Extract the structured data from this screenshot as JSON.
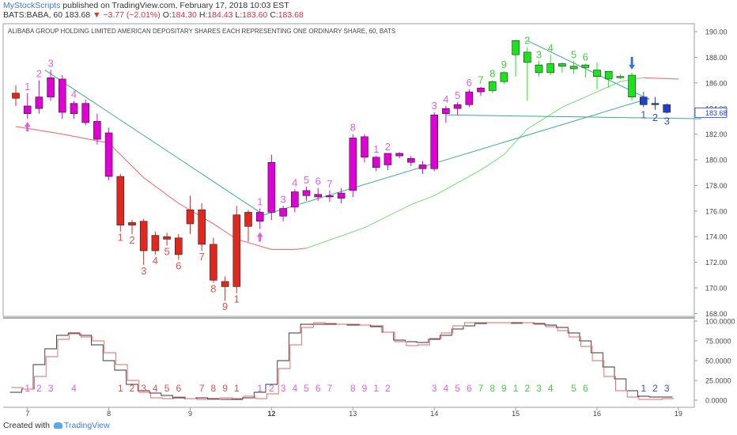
{
  "header": {
    "publisher": "MyStockScripts",
    "published_text": "published on TradingView.com, February 17, 2018 10:03 EST",
    "symbol": "BATS:BABA, 60",
    "last": "183.68",
    "change": "▼ −3.77 (−2.01%)",
    "ohlc_open_label": "O:",
    "ohlc_open": "184.30",
    "ohlc_high_label": "H:",
    "ohlc_high": "184.43",
    "ohlc_low_label": "L:",
    "ohlc_low": "183.60",
    "ohlc_close_label": "C:",
    "ohlc_close": "183.68"
  },
  "footer": {
    "created_with": "Created with",
    "brand": "TradingView"
  },
  "colors": {
    "bear": "#e0281e",
    "bull": "#e000d6",
    "green": "#19e619",
    "blue": "#1f3fcf",
    "count_pink": "#e060e0",
    "count_red": "#e05050",
    "count_green": "#40d040",
    "count_blue": "#3050d0",
    "red_ma": "#f07070",
    "green_ma": "#7ee07e",
    "trend": "#3aa99a",
    "osc_black": "#333333",
    "osc_red": "#e46666"
  },
  "chart_data": [
    {
      "type": "candlestick",
      "title": "ALIBABA GROUP HOLDING LIMITED AMERICAN DEPOSITARY SHARES EACH REPRESENTING ONE ORDINARY SHARE, 60, BATS",
      "x_ticks": [
        {
          "label": "7",
          "bar": 1
        },
        {
          "label": "8",
          "bar": 8
        },
        {
          "label": "9",
          "bar": 15
        },
        {
          "label": "12",
          "bar": 22
        },
        {
          "label": "13",
          "bar": 29
        },
        {
          "label": "14",
          "bar": 36
        },
        {
          "label": "15",
          "bar": 43
        },
        {
          "label": "16",
          "bar": 50
        },
        {
          "label": "19",
          "bar": 57
        }
      ],
      "ylim": [
        167.8,
        190.8
      ],
      "y_ticks": [
        "190.00",
        "188.00",
        "186.00",
        "184.00",
        "182.00",
        "180.00",
        "178.00",
        "176.00",
        "174.00",
        "172.00",
        "170.00",
        "168.00"
      ],
      "last_price_label": "183.68",
      "candles": [
        {
          "o": 185.2,
          "h": 185.8,
          "l": 184.2,
          "c": 184.8,
          "col": "bear"
        },
        {
          "o": 183.6,
          "h": 185.2,
          "l": 183.2,
          "c": 184.2,
          "col": "bull",
          "cnt": "1",
          "cc": "count_pink",
          "up_arrow": true
        },
        {
          "o": 184.0,
          "h": 186.2,
          "l": 183.6,
          "c": 184.9,
          "col": "bull",
          "cnt": "2",
          "cc": "count_pink"
        },
        {
          "o": 184.9,
          "h": 187.0,
          "l": 184.6,
          "c": 186.4,
          "col": "bull",
          "cnt": "3",
          "cc": "count_pink"
        },
        {
          "o": 186.3,
          "h": 186.6,
          "l": 183.2,
          "c": 183.7,
          "col": "bull"
        },
        {
          "o": 183.6,
          "h": 184.6,
          "l": 183.2,
          "c": 184.4,
          "col": "bull",
          "cnt": "4",
          "cc": "count_pink"
        },
        {
          "o": 184.4,
          "h": 184.7,
          "l": 182.7,
          "c": 182.9,
          "col": "bull"
        },
        {
          "o": 183.0,
          "h": 183.6,
          "l": 181.2,
          "c": 181.6,
          "col": "bull"
        },
        {
          "o": 182.1,
          "h": 182.5,
          "l": 178.4,
          "c": 178.7,
          "col": "bull"
        },
        {
          "o": 178.7,
          "h": 178.9,
          "l": 174.4,
          "c": 174.9,
          "col": "bear",
          "cnt": "1",
          "cc": "count_red"
        },
        {
          "o": 174.9,
          "h": 175.3,
          "l": 174.2,
          "c": 175.1,
          "col": "bear",
          "cnt": "2",
          "cc": "count_red"
        },
        {
          "o": 175.2,
          "h": 175.4,
          "l": 171.8,
          "c": 172.9,
          "col": "bear",
          "cnt": "3",
          "cc": "count_red"
        },
        {
          "o": 172.9,
          "h": 174.4,
          "l": 172.6,
          "c": 174.1,
          "col": "bear",
          "cnt": "4",
          "cc": "count_red"
        },
        {
          "o": 174.0,
          "h": 174.3,
          "l": 173.3,
          "c": 173.8,
          "col": "bear",
          "cnt": "5",
          "cc": "count_red"
        },
        {
          "o": 173.9,
          "h": 174.2,
          "l": 172.2,
          "c": 172.6,
          "col": "bear",
          "cnt": "6",
          "cc": "count_red"
        },
        {
          "o": 175.0,
          "h": 177.2,
          "l": 174.2,
          "c": 176.1,
          "col": "bear"
        },
        {
          "o": 176.1,
          "h": 176.6,
          "l": 172.9,
          "c": 173.4,
          "col": "bear",
          "cnt": "7",
          "cc": "count_red"
        },
        {
          "o": 173.4,
          "h": 173.9,
          "l": 170.4,
          "c": 170.6,
          "col": "bear",
          "cnt": "8",
          "cc": "count_red"
        },
        {
          "o": 170.5,
          "h": 170.9,
          "l": 169.0,
          "c": 170.1,
          "col": "bear",
          "cnt": "9",
          "cc": "count_red"
        },
        {
          "o": 170.1,
          "h": 176.4,
          "l": 169.6,
          "c": 175.7,
          "col": "bear",
          "cnt": "1",
          "cc": "count_red"
        },
        {
          "o": 174.8,
          "h": 176.1,
          "l": 173.6,
          "c": 175.9,
          "col": "bear"
        },
        {
          "o": 175.2,
          "h": 176.2,
          "l": 174.6,
          "c": 175.9,
          "col": "bull",
          "cnt": "1",
          "cc": "count_pink",
          "up_arrow": true
        },
        {
          "o": 175.9,
          "h": 180.4,
          "l": 175.3,
          "c": 179.8,
          "col": "bull"
        },
        {
          "o": 175.6,
          "h": 176.4,
          "l": 175.2,
          "c": 176.2,
          "col": "bull",
          "cnt": "3",
          "cc": "count_pink"
        },
        {
          "o": 176.3,
          "h": 177.7,
          "l": 175.9,
          "c": 177.5,
          "col": "bull",
          "cnt": "4",
          "cc": "count_pink"
        },
        {
          "o": 177.2,
          "h": 177.9,
          "l": 176.8,
          "c": 177.6,
          "col": "bull",
          "cnt": "5",
          "cc": "count_pink"
        },
        {
          "o": 177.3,
          "h": 177.8,
          "l": 176.8,
          "c": 177.1,
          "col": "bull",
          "cnt": "6",
          "cc": "count_pink"
        },
        {
          "o": 177.1,
          "h": 177.6,
          "l": 176.7,
          "c": 177.2,
          "col": "bull",
          "cnt": "7",
          "cc": "count_pink"
        },
        {
          "o": 177.0,
          "h": 177.8,
          "l": 176.6,
          "c": 177.4,
          "col": "bull"
        },
        {
          "o": 177.6,
          "h": 182.0,
          "l": 177.1,
          "c": 181.7,
          "col": "bull",
          "cnt": "8",
          "cc": "count_pink"
        },
        {
          "o": 180.2,
          "h": 182.0,
          "l": 179.8,
          "c": 181.8,
          "col": "bull"
        },
        {
          "o": 179.4,
          "h": 180.3,
          "l": 179.1,
          "c": 180.2,
          "col": "bull",
          "cnt": "1",
          "cc": "count_pink"
        },
        {
          "o": 179.6,
          "h": 180.5,
          "l": 179.2,
          "c": 180.5,
          "col": "bull",
          "cnt": "2",
          "cc": "count_pink"
        },
        {
          "o": 180.3,
          "h": 180.6,
          "l": 180.1,
          "c": 180.5,
          "col": "bull"
        },
        {
          "o": 179.8,
          "h": 180.3,
          "l": 179.5,
          "c": 180.1,
          "col": "bull"
        },
        {
          "o": 179.3,
          "h": 179.9,
          "l": 178.9,
          "c": 179.6,
          "col": "bull"
        },
        {
          "o": 179.3,
          "h": 183.7,
          "l": 179.1,
          "c": 183.5,
          "col": "bull",
          "cnt": "3",
          "cc": "count_pink"
        },
        {
          "o": 183.6,
          "h": 184.2,
          "l": 182.9,
          "c": 184.0,
          "col": "bull",
          "cnt": "4",
          "cc": "count_pink"
        },
        {
          "o": 184.0,
          "h": 184.5,
          "l": 183.5,
          "c": 184.3,
          "col": "bull",
          "cnt": "5",
          "cc": "count_pink"
        },
        {
          "o": 184.3,
          "h": 185.5,
          "l": 184.1,
          "c": 185.3,
          "col": "bull",
          "cnt": "6",
          "cc": "count_pink"
        },
        {
          "o": 185.3,
          "h": 185.7,
          "l": 185.0,
          "c": 185.6,
          "col": "bull",
          "cnt": "7",
          "cc": "count_green"
        },
        {
          "o": 185.4,
          "h": 186.2,
          "l": 185.2,
          "c": 186.1,
          "col": "green",
          "cnt": "8",
          "cc": "count_green"
        },
        {
          "o": 186.1,
          "h": 186.9,
          "l": 185.9,
          "c": 186.8,
          "col": "green",
          "cnt": "9",
          "cc": "count_green"
        },
        {
          "o": 188.2,
          "h": 189.4,
          "l": 186.5,
          "c": 189.3,
          "col": "green"
        },
        {
          "o": 187.6,
          "h": 188.8,
          "l": 184.6,
          "c": 188.4,
          "col": "green",
          "cnt": "2",
          "cc": "count_green"
        },
        {
          "o": 186.8,
          "h": 187.7,
          "l": 186.5,
          "c": 187.4,
          "col": "green",
          "cnt": "3",
          "cc": "count_green"
        },
        {
          "o": 186.8,
          "h": 188.2,
          "l": 186.6,
          "c": 187.5,
          "col": "green",
          "cnt": "4",
          "cc": "count_green"
        },
        {
          "o": 187.3,
          "h": 187.6,
          "l": 186.8,
          "c": 187.5,
          "col": "green"
        },
        {
          "o": 187.1,
          "h": 187.7,
          "l": 186.7,
          "c": 187.3,
          "col": "green",
          "cnt": "5",
          "cc": "count_green"
        },
        {
          "o": 187.2,
          "h": 187.5,
          "l": 186.4,
          "c": 187.4,
          "col": "green",
          "cnt": "6",
          "cc": "count_green"
        },
        {
          "o": 187.0,
          "h": 187.6,
          "l": 185.5,
          "c": 186.5,
          "col": "green"
        },
        {
          "o": 186.3,
          "h": 186.9,
          "l": 185.6,
          "c": 186.9,
          "col": "green"
        },
        {
          "o": 186.5,
          "h": 186.7,
          "l": 186.3,
          "c": 186.5,
          "col": "green"
        },
        {
          "o": 186.6,
          "h": 186.8,
          "l": 184.6,
          "c": 184.9,
          "col": "green",
          "down_arrow": true
        },
        {
          "o": 184.9,
          "h": 185.3,
          "l": 184.1,
          "c": 184.3,
          "col": "blue",
          "cnt": "1",
          "cc": "count_blue"
        },
        {
          "o": 184.3,
          "h": 184.9,
          "l": 183.9,
          "c": 184.4,
          "col": "blue",
          "cnt": "2",
          "cc": "count_blue"
        },
        {
          "o": 184.3,
          "h": 184.4,
          "l": 183.6,
          "c": 183.7,
          "col": "blue",
          "cnt": "3",
          "cc": "count_blue"
        }
      ],
      "red_ma": [
        {
          "bar": 0,
          "v": 182.6
        },
        {
          "bar": 4,
          "v": 182.0
        },
        {
          "bar": 8,
          "v": 181.3
        },
        {
          "bar": 11,
          "v": 178.6
        },
        {
          "bar": 14,
          "v": 176.6
        },
        {
          "bar": 17,
          "v": 175.0
        },
        {
          "bar": 19,
          "v": 173.8
        },
        {
          "bar": 22,
          "v": 173.0
        },
        {
          "bar": 24,
          "v": 173.0
        },
        {
          "bar": 25,
          "v": 173.1
        }
      ],
      "green_ma": [
        {
          "bar": 25,
          "v": 173.1
        },
        {
          "bar": 30,
          "v": 174.7
        },
        {
          "bar": 34,
          "v": 176.5
        },
        {
          "bar": 36,
          "v": 177.2
        },
        {
          "bar": 40,
          "v": 179.2
        },
        {
          "bar": 42,
          "v": 180.4
        },
        {
          "bar": 44,
          "v": 182.4
        },
        {
          "bar": 47,
          "v": 184.1
        },
        {
          "bar": 50,
          "v": 185.3
        },
        {
          "bar": 52,
          "v": 186.1
        },
        {
          "bar": 54,
          "v": 186.4
        }
      ],
      "red_ma_tail": [
        {
          "bar": 54,
          "v": 186.4
        },
        {
          "bar": 57,
          "v": 186.3
        }
      ],
      "trend_lines": [
        [
          {
            "bar": 2.5,
            "v": 187.0
          },
          {
            "bar": 21,
            "v": 175.9
          }
        ],
        [
          {
            "bar": 21,
            "v": 175.6
          },
          {
            "bar": 54.5,
            "v": 184.8
          }
        ],
        [
          {
            "bar": 37,
            "v": 183.5
          },
          {
            "bar": 59,
            "v": 183.2
          }
        ],
        [
          {
            "bar": 44,
            "v": 189.3
          },
          {
            "bar": 54.5,
            "v": 184.7
          }
        ]
      ]
    },
    {
      "type": "line",
      "ylim": [
        -4,
        104
      ],
      "y_ticks": [
        "100.0000",
        "75.0000",
        "50.0000",
        "25.0000",
        "0.0000"
      ],
      "y_tick_values": [
        100,
        75,
        50,
        25,
        0
      ],
      "series": [
        {
          "color": "osc_black",
          "values": [
            10,
            14,
            45,
            65,
            82,
            85,
            82,
            70,
            50,
            38,
            20,
            12,
            9,
            6,
            3,
            2,
            3,
            2,
            1,
            1,
            3,
            10,
            20,
            50,
            85,
            96,
            96,
            96,
            96,
            95,
            95,
            93,
            86,
            76,
            74,
            73,
            77,
            82,
            90,
            94,
            97,
            98,
            98,
            98,
            98,
            97,
            95,
            92,
            85,
            75,
            60,
            42,
            27,
            12,
            5,
            4,
            4
          ]
        },
        {
          "color": "osc_red",
          "values": [
            16,
            14,
            30,
            55,
            77,
            84,
            80,
            75,
            60,
            45,
            25,
            10,
            3,
            2,
            4,
            2,
            1,
            1,
            3,
            2,
            5,
            2,
            8,
            40,
            70,
            92,
            98,
            97,
            96,
            96,
            95,
            94,
            86,
            74,
            69,
            70,
            78,
            85,
            94,
            98,
            98,
            98,
            98,
            97,
            98,
            96,
            93,
            88,
            80,
            68,
            50,
            30,
            12,
            4,
            1,
            1,
            2
          ]
        }
      ],
      "count_labels": [
        {
          "bar": 1,
          "t": "1",
          "cc": "count_pink"
        },
        {
          "bar": 2,
          "t": "2",
          "cc": "count_pink"
        },
        {
          "bar": 3,
          "t": "3",
          "cc": "count_pink"
        },
        {
          "bar": 5,
          "t": "4",
          "cc": "count_pink"
        },
        {
          "bar": 9,
          "t": "1",
          "cc": "count_red"
        },
        {
          "bar": 10,
          "t": "2",
          "cc": "count_red"
        },
        {
          "bar": 11,
          "t": "3",
          "cc": "count_red"
        },
        {
          "bar": 12,
          "t": "4",
          "cc": "count_red"
        },
        {
          "bar": 13,
          "t": "5",
          "cc": "count_red"
        },
        {
          "bar": 14,
          "t": "6",
          "cc": "count_red"
        },
        {
          "bar": 16,
          "t": "7",
          "cc": "count_red"
        },
        {
          "bar": 17,
          "t": "8",
          "cc": "count_red"
        },
        {
          "bar": 18,
          "t": "9",
          "cc": "count_red"
        },
        {
          "bar": 19,
          "t": "1",
          "cc": "count_red"
        },
        {
          "bar": 21,
          "t": "1",
          "cc": "count_pink"
        },
        {
          "bar": 22,
          "t": "2",
          "cc": "count_pink"
        },
        {
          "bar": 23,
          "t": "3",
          "cc": "count_pink"
        },
        {
          "bar": 24,
          "t": "4",
          "cc": "count_pink"
        },
        {
          "bar": 25,
          "t": "5",
          "cc": "count_pink"
        },
        {
          "bar": 26,
          "t": "6",
          "cc": "count_pink"
        },
        {
          "bar": 27,
          "t": "7",
          "cc": "count_pink"
        },
        {
          "bar": 29,
          "t": "8",
          "cc": "count_pink"
        },
        {
          "bar": 30,
          "t": "9",
          "cc": "count_pink"
        },
        {
          "bar": 31,
          "t": "1",
          "cc": "count_pink"
        },
        {
          "bar": 32,
          "t": "2",
          "cc": "count_pink"
        },
        {
          "bar": 36,
          "t": "3",
          "cc": "count_pink"
        },
        {
          "bar": 37,
          "t": "4",
          "cc": "count_pink"
        },
        {
          "bar": 38,
          "t": "5",
          "cc": "count_pink"
        },
        {
          "bar": 39,
          "t": "6",
          "cc": "count_pink"
        },
        {
          "bar": 40,
          "t": "7",
          "cc": "count_green"
        },
        {
          "bar": 41,
          "t": "8",
          "cc": "count_green"
        },
        {
          "bar": 42,
          "t": "9",
          "cc": "count_green"
        },
        {
          "bar": 43,
          "t": "1",
          "cc": "count_green"
        },
        {
          "bar": 44,
          "t": "2",
          "cc": "count_green"
        },
        {
          "bar": 45,
          "t": "3",
          "cc": "count_green"
        },
        {
          "bar": 46,
          "t": "4",
          "cc": "count_green"
        },
        {
          "bar": 48,
          "t": "5",
          "cc": "count_green"
        },
        {
          "bar": 49,
          "t": "6",
          "cc": "count_green"
        },
        {
          "bar": 54,
          "t": "1",
          "cc": "count_blue"
        },
        {
          "bar": 55,
          "t": "2",
          "cc": "count_blue"
        },
        {
          "bar": 56,
          "t": "3",
          "cc": "count_blue"
        }
      ]
    }
  ]
}
